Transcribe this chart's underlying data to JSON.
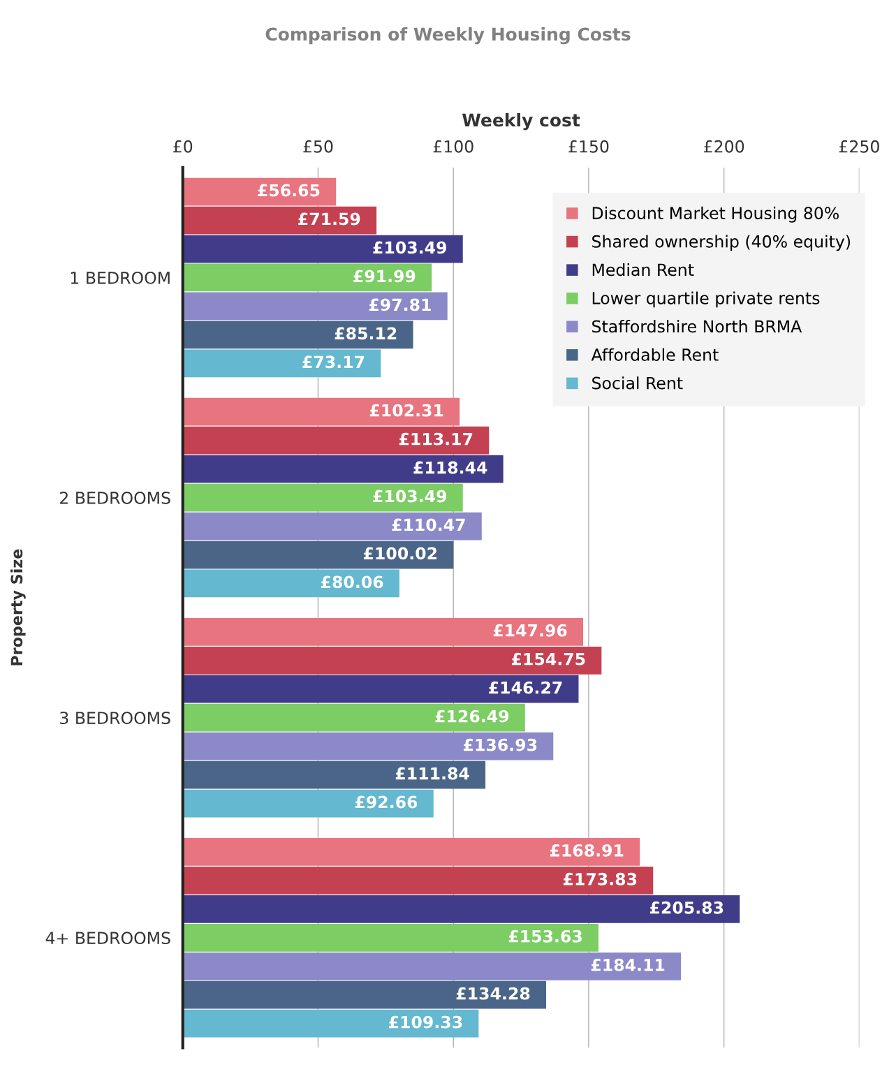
{
  "chart_data": {
    "type": "bar",
    "orientation": "horizontal",
    "title": "Comparison of Weekly Housing Costs",
    "xlabel": "Weekly cost",
    "ylabel": "Property Size",
    "categories": [
      "1 BEDROOM",
      "2 BEDROOMS",
      "3 BEDROOMS",
      "4+ BEDROOMS"
    ],
    "series": [
      {
        "name": "Discount Market Housing 80%",
        "color": "#e8747f",
        "values": [
          56.65,
          102.31,
          147.96,
          168.91
        ],
        "value_labels": [
          "£56.65",
          "£102.31",
          "£147.96",
          "£168.91"
        ]
      },
      {
        "name": "Shared ownership (40% equity)",
        "color": "#c44152",
        "values": [
          71.59,
          113.17,
          154.75,
          173.83
        ],
        "value_labels": [
          "£71.59",
          "£113.17",
          "£154.75",
          "£173.83"
        ]
      },
      {
        "name": "Median Rent",
        "color": "#413c8a",
        "values": [
          103.49,
          118.44,
          146.27,
          205.83
        ],
        "value_labels": [
          "£103.49",
          "£118.44",
          "£146.27",
          "£205.83"
        ]
      },
      {
        "name": "Lower quartile private rents",
        "color": "#7dcd65",
        "values": [
          91.99,
          103.49,
          126.49,
          153.63
        ],
        "value_labels": [
          "£91.99",
          "£103.49",
          "£126.49",
          "£153.63"
        ]
      },
      {
        "name": "Staffordshire North BRMA",
        "color": "#8b89c8",
        "values": [
          97.81,
          110.47,
          136.93,
          184.11
        ],
        "value_labels": [
          "£97.81",
          "£110.47",
          "£136.93",
          "£184.11"
        ]
      },
      {
        "name": "Affordable Rent",
        "color": "#4a6587",
        "values": [
          85.12,
          100.02,
          111.84,
          134.28
        ],
        "value_labels": [
          "£85.12",
          "£100.02",
          "£111.84",
          "£134.28"
        ]
      },
      {
        "name": "Social Rent",
        "color": "#64b8d0",
        "values": [
          73.17,
          80.06,
          92.66,
          109.33
        ],
        "value_labels": [
          "£73.17",
          "£80.06",
          "£92.66",
          "£109.33"
        ]
      }
    ],
    "xlim": [
      0,
      250
    ],
    "xticks": [
      {
        "value": 0,
        "label": "£0"
      },
      {
        "value": 50,
        "label": "£50"
      },
      {
        "value": 100,
        "label": "£100"
      },
      {
        "value": 150,
        "label": "£150"
      },
      {
        "value": 200,
        "label": "£200"
      },
      {
        "value": 250,
        "label": "£250"
      }
    ],
    "grid": "x",
    "legend": "top right"
  }
}
